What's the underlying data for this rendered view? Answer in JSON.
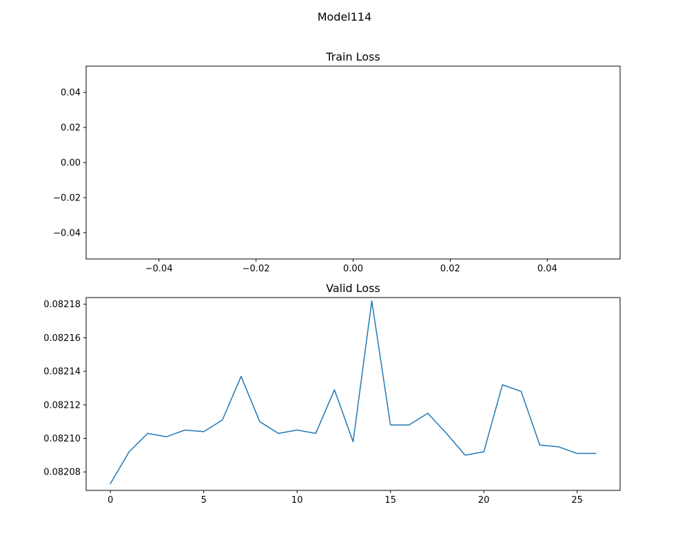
{
  "figure": {
    "suptitle": "Model114"
  },
  "chart_data": [
    {
      "type": "line",
      "title": "Train Loss",
      "xlabel": "",
      "ylabel": "",
      "xlim": [
        -0.055,
        0.055
      ],
      "ylim": [
        -0.055,
        0.055
      ],
      "xticks": [
        -0.04,
        -0.02,
        0.0,
        0.02,
        0.04
      ],
      "xtick_labels": [
        "−0.04",
        "−0.02",
        "0.00",
        "0.02",
        "0.04"
      ],
      "yticks": [
        0.04,
        0.02,
        0.0,
        -0.02,
        -0.04
      ],
      "ytick_labels": [
        "0.04",
        "0.02",
        "0.00",
        "−0.02",
        "−0.04"
      ],
      "series": [
        {
          "x": [],
          "y": [],
          "color": "#1f77b4"
        }
      ],
      "grid": false,
      "legend": "none"
    },
    {
      "type": "line",
      "title": "Valid Loss",
      "xlabel": "",
      "ylabel": "",
      "xlim": [
        -1.3,
        27.3
      ],
      "ylim": [
        0.082069,
        0.082184
      ],
      "xticks": [
        0,
        5,
        10,
        15,
        20,
        25
      ],
      "xtick_labels": [
        "0",
        "5",
        "10",
        "15",
        "20",
        "25"
      ],
      "yticks": [
        0.08208,
        0.0821,
        0.08212,
        0.08214,
        0.08216,
        0.08218
      ],
      "ytick_labels": [
        "0.08208",
        "0.08210",
        "0.08212",
        "0.08214",
        "0.08216",
        "0.08218"
      ],
      "series": [
        {
          "color": "#1f77b4",
          "x": [
            0,
            1,
            2,
            3,
            4,
            5,
            6,
            7,
            8,
            9,
            10,
            11,
            12,
            13,
            14,
            15,
            16,
            17,
            18,
            19,
            20,
            21,
            22,
            23,
            24,
            25,
            26
          ],
          "y": [
            0.082073,
            0.082092,
            0.082103,
            0.082101,
            0.082105,
            0.082104,
            0.082111,
            0.082137,
            0.08211,
            0.082103,
            0.082105,
            0.082103,
            0.082129,
            0.082098,
            0.082182,
            0.082108,
            0.082108,
            0.082115,
            0.082103,
            0.08209,
            0.082092,
            0.082132,
            0.082128,
            0.082096,
            0.082095,
            0.082091,
            0.082091
          ]
        }
      ],
      "grid": false,
      "legend": "none"
    }
  ]
}
